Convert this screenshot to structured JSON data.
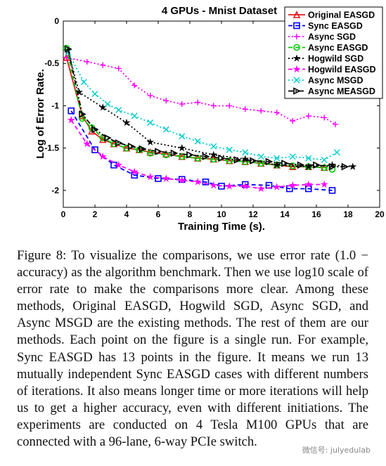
{
  "chart_data": {
    "type": "line",
    "title": "4 GPUs - Mnist Dataset",
    "xlabel": "Training Time (s).",
    "ylabel": "Log of Error Rate.",
    "xlim": [
      0,
      20
    ],
    "ylim": [
      -2.2,
      0
    ],
    "xticks": [
      "0",
      "2",
      "4",
      "6",
      "8",
      "10",
      "12",
      "14",
      "16",
      "18",
      "20"
    ],
    "yticks": [
      "0",
      "-0.5",
      "-1",
      "-1.5",
      "-2"
    ],
    "legend_position": "top-right",
    "grid": false,
    "series": [
      {
        "name": "Original EASGD",
        "color": "#e41a1c",
        "marker": "triangle-up",
        "dash": "solid",
        "x": [
          0.2,
          1.2,
          1.8,
          2.5,
          3.2,
          4,
          4.8,
          5.5,
          6.5,
          7.5,
          8.5,
          9.5,
          10.5,
          11.5,
          12.5,
          13.5,
          14.5,
          15.5,
          16.5
        ],
        "y": [
          -0.43,
          -1.12,
          -1.3,
          -1.4,
          -1.45,
          -1.5,
          -1.52,
          -1.55,
          -1.57,
          -1.6,
          -1.62,
          -1.63,
          -1.65,
          -1.66,
          -1.68,
          -1.7,
          -1.72,
          -1.72,
          -1.73
        ]
      },
      {
        "name": "Sync EASGD",
        "color": "#0000ff",
        "marker": "square",
        "dash": "dashed",
        "x": [
          0.5,
          2,
          3.2,
          4.5,
          6,
          7.5,
          9,
          10,
          11.5,
          13,
          14.3,
          15.5,
          17
        ],
        "y": [
          -1.06,
          -1.52,
          -1.7,
          -1.82,
          -1.86,
          -1.87,
          -1.9,
          -1.95,
          -1.93,
          -1.94,
          -1.98,
          -1.98,
          -2.0
        ]
      },
      {
        "name": "Async SGD",
        "color": "#ff00ff",
        "marker": "plus",
        "dash": "dotted",
        "x": [
          0.2,
          1.5,
          2.5,
          3.5,
          4.5,
          5.5,
          6.5,
          7.5,
          8.5,
          9.5,
          10.5,
          11.5,
          12.5,
          13.5,
          14.5,
          15.5,
          16.5,
          17.2
        ],
        "y": [
          -0.43,
          -0.48,
          -0.52,
          -0.56,
          -0.76,
          -0.88,
          -0.94,
          -0.98,
          -0.96,
          -1.0,
          -1.0,
          -1.04,
          -1.06,
          -1.08,
          -1.18,
          -1.12,
          -1.14,
          -1.22
        ]
      },
      {
        "name": "Async EASGD",
        "color": "#00cc00",
        "marker": "circle",
        "dash": "dashed",
        "x": [
          0.2,
          1.2,
          1.8,
          2.5,
          3.2,
          4,
          4.8,
          5.5,
          6.5,
          7.5,
          8.5,
          9.5,
          10.5,
          11.5,
          12.5,
          13.5,
          14.5,
          15.5,
          16.5,
          17
        ],
        "y": [
          -0.32,
          -1.15,
          -1.26,
          -1.38,
          -1.45,
          -1.5,
          -1.52,
          -1.56,
          -1.58,
          -1.6,
          -1.62,
          -1.63,
          -1.65,
          -1.66,
          -1.68,
          -1.7,
          -1.71,
          -1.72,
          -1.73,
          -1.75
        ]
      },
      {
        "name": "Hogwild SGD",
        "color": "#000000",
        "marker": "star",
        "dash": "dotted",
        "x": [
          0.3,
          1,
          2.5,
          4,
          5.5,
          7.5,
          9.5,
          11.5,
          13.5,
          15.5,
          17,
          18.3
        ],
        "y": [
          -0.35,
          -0.84,
          -1.02,
          -1.2,
          -1.43,
          -1.5,
          -1.58,
          -1.63,
          -1.7,
          -1.72,
          -1.7,
          -1.72
        ]
      },
      {
        "name": "Hogwild EASGD",
        "color": "#ff00ff",
        "marker": "star",
        "dash": "dashed",
        "x": [
          0.5,
          1.5,
          2.5,
          3.5,
          4.5,
          5.5,
          6.5,
          7.5,
          8.5,
          9.5,
          10.5,
          11.5,
          12.5,
          13.5,
          14.5,
          15.5,
          16.5
        ],
        "y": [
          -1.17,
          -1.45,
          -1.6,
          -1.7,
          -1.78,
          -1.84,
          -1.86,
          -1.88,
          -1.9,
          -1.94,
          -1.95,
          -1.95,
          -1.98,
          -1.96,
          -1.94,
          -1.93,
          -1.93
        ]
      },
      {
        "name": "Async MSGD",
        "color": "#00cccc",
        "marker": "x",
        "dash": "dotted",
        "x": [
          0.3,
          1.3,
          2,
          2.8,
          3.5,
          4.5,
          5.5,
          6.5,
          7.5,
          8.5,
          9.5,
          10.5,
          11.5,
          12.5,
          13.5,
          14.5,
          15.5,
          16.5,
          17.3
        ],
        "y": [
          -0.37,
          -0.72,
          -0.86,
          -0.98,
          -1.05,
          -1.12,
          -1.2,
          -1.28,
          -1.36,
          -1.42,
          -1.48,
          -1.52,
          -1.55,
          -1.6,
          -1.62,
          -1.6,
          -1.62,
          -1.64,
          -1.55
        ]
      },
      {
        "name": "Async MEASGD",
        "color": "#000000",
        "marker": "triangle-right",
        "dash": "dashdot",
        "x": [
          0.3,
          1.2,
          2,
          2.8,
          3.5,
          4.3,
          5,
          6,
          7,
          8,
          9,
          10,
          11,
          12,
          13,
          14,
          15,
          16,
          17,
          17.8
        ],
        "y": [
          -0.33,
          -1.1,
          -1.28,
          -1.38,
          -1.44,
          -1.48,
          -1.51,
          -1.54,
          -1.56,
          -1.58,
          -1.6,
          -1.62,
          -1.64,
          -1.65,
          -1.66,
          -1.68,
          -1.7,
          -1.7,
          -1.72,
          -1.72
        ]
      }
    ]
  },
  "caption": {
    "label": "Figure 8:",
    "text": "To visualize the comparisons, we use error rate (1.0 − accuracy) as the algorithm benchmark. Then we use log10 scale of error rate to make the comparisons more clear. Among these methods, Original EASGD, Hogwild SGD, Async SGD, and Async MSGD are the existing methods. The rest of them are our methods. Each point on the figure is a single run. For example, Sync EASGD has 13 points in the figure. It means we run 13 mutually independent Sync EASGD cases with different numbers of iterations. It also means longer time or more iterations will help us to get a higher accuracy, even with different initiations. The experiments are conducted on 4 Tesla M100 GPUs that are connected with a 96-lane, 6-way PCIe switch."
  },
  "watermark": "微信号: julyedulab"
}
